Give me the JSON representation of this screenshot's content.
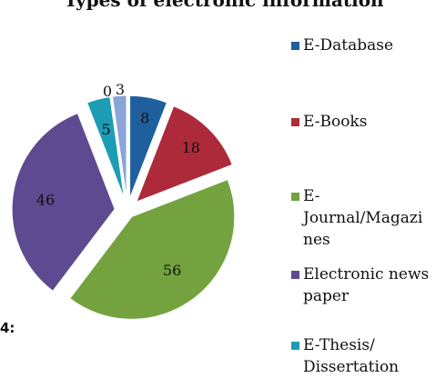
{
  "figure_label": "4:",
  "chart_data": {
    "type": "pie",
    "title": "Types of electronic information",
    "categories": [
      "E-Database",
      "E-Books",
      "E-Journal/Magazines",
      "Electronic news paper",
      "E-Thesis/Dissertation",
      "",
      ""
    ],
    "values": [
      8,
      18,
      56,
      46,
      5,
      0,
      3
    ],
    "data_labels": [
      "8",
      "18",
      "56",
      "46",
      "5",
      "0",
      "3"
    ],
    "colors": [
      "#1f5f9e",
      "#ad2a3a",
      "#74a23f",
      "#5e4a90",
      "#1d9cb6",
      "#e07b2a",
      "#8aa4d8"
    ],
    "legend": {
      "placement": "right",
      "items": [
        {
          "label": "E-Database",
          "lines": [
            "E-Database"
          ],
          "color": "#1f5f9e"
        },
        {
          "label": "E-Books",
          "lines": [
            "E-Books"
          ],
          "color": "#ad2a3a"
        },
        {
          "label": "E-Journal/Magazines",
          "lines": [
            "E-",
            "Journal/Magazi",
            "nes"
          ],
          "color": "#74a23f"
        },
        {
          "label": "Electronic news paper",
          "lines": [
            "Electronic news",
            "paper"
          ],
          "color": "#5e4a90"
        },
        {
          "label": "E-Thesis/Dissertation",
          "lines": [
            "E-Thesis/",
            "Dissertation"
          ],
          "color": "#1d9cb6"
        }
      ]
    }
  }
}
